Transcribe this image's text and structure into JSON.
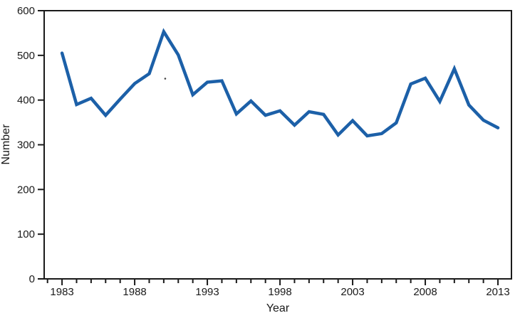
{
  "chart_data": {
    "type": "line",
    "title": "",
    "xlabel": "Year",
    "ylabel": "Number",
    "x": [
      1983,
      1984,
      1985,
      1986,
      1987,
      1988,
      1989,
      1990,
      1991,
      1992,
      1993,
      1994,
      1995,
      1996,
      1997,
      1998,
      1999,
      2000,
      2001,
      2002,
      2003,
      2004,
      2005,
      2006,
      2007,
      2008,
      2009,
      2010,
      2011,
      2012,
      2013
    ],
    "values": [
      505,
      390,
      404,
      366,
      402,
      437,
      459,
      553,
      501,
      412,
      440,
      443,
      369,
      398,
      366,
      376,
      344,
      374,
      368,
      322,
      354,
      320,
      325,
      349,
      436,
      449,
      397,
      470,
      389,
      355,
      338
    ],
    "xlim": [
      1981.77,
      2013.93
    ],
    "ylim": [
      0,
      600
    ],
    "yticks": [
      0,
      100,
      200,
      300,
      400,
      500,
      600
    ],
    "xticks_labeled": [
      1983,
      1988,
      1993,
      1998,
      2003,
      2008,
      2013
    ],
    "xticks_minor_start": 1982,
    "xticks_minor_end": 2013,
    "grid": false,
    "legend": "none",
    "line_color": "#1c60a8",
    "axis_color": "#1a1a1a",
    "text_color": "#1a1a1a",
    "speck": {
      "x": 1990.1,
      "y": 448
    }
  }
}
